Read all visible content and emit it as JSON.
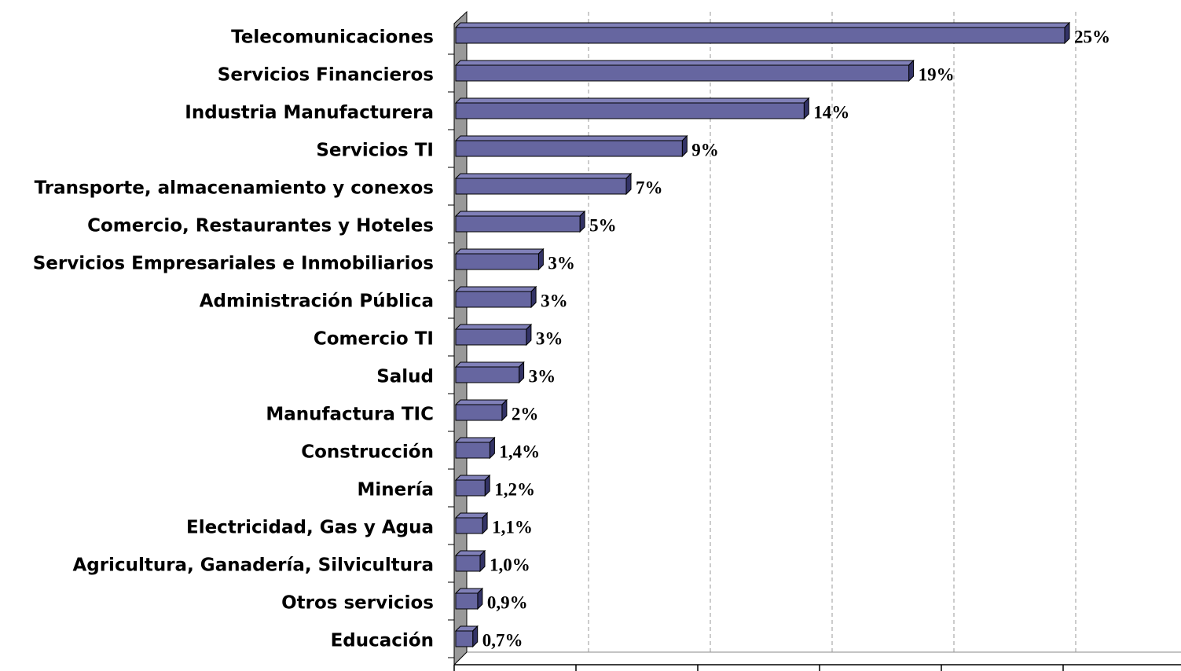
{
  "chart_data": {
    "type": "bar3d_horizontal",
    "categories": [
      "Telecomunicaciones",
      "Servicios Financieros",
      "Industria Manufacturera",
      "Servicios TI",
      "Transporte, almacenamiento y conexos",
      "Comercio, Restaurantes y Hoteles",
      "Servicios Empresariales e Inmobiliarios",
      "Administración Pública",
      "Comercio TI",
      "Salud",
      "Manufactura TIC",
      "Construcción",
      "Minería",
      "Electricidad, Gas y Agua",
      "Agricultura, Ganadería, Silvicultura",
      "Otros servicios",
      "Educación"
    ],
    "values": [
      25,
      18.6,
      14.3,
      9.3,
      7.0,
      5.1,
      3.4,
      3.1,
      2.9,
      2.6,
      1.9,
      1.4,
      1.2,
      1.1,
      1.0,
      0.9,
      0.7
    ],
    "value_labels": [
      "25%",
      "19%",
      "14%",
      "9%",
      "7%",
      "5%",
      "3%",
      "3%",
      "3%",
      "3%",
      "2%",
      "1,4%",
      "1,2%",
      "1,1%",
      "1,0%",
      "0,9%",
      "0,7%"
    ],
    "color": "#6666a0",
    "xlim": [
      0,
      25
    ],
    "xticks": [
      0,
      5,
      10,
      15,
      20,
      25
    ],
    "grid": true
  }
}
